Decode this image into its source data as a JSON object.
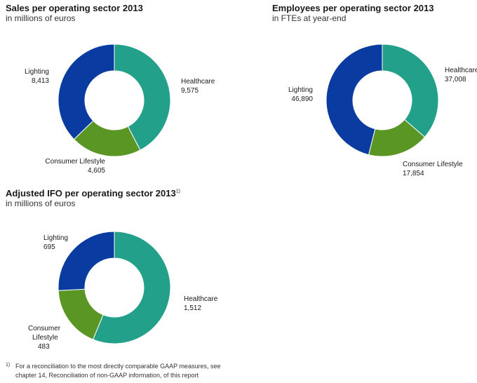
{
  "colors": {
    "Healthcare": "#22a08a",
    "Consumer Lifestyle": "#5a9623",
    "Lighting": "#0a3ba0"
  },
  "chart_data": [
    {
      "type": "pie",
      "title": "Sales per operating sector 2013",
      "subtitle": "in millions of euros",
      "series": [
        {
          "name": "Healthcare",
          "label": "Healthcare",
          "value": 9575,
          "value_label": "9,575"
        },
        {
          "name": "Consumer Lifestyle",
          "label": "Consumer Lifestyle",
          "value": 4605,
          "value_label": "4,605"
        },
        {
          "name": "Lighting",
          "label": "Lighting",
          "value": 8413,
          "value_label": "8,413"
        }
      ]
    },
    {
      "type": "pie",
      "title": "Employees per operating sector 2013",
      "subtitle": "in FTEs at year-end",
      "series": [
        {
          "name": "Healthcare",
          "label": "Healthcare",
          "value": 37008,
          "value_label": "37,008"
        },
        {
          "name": "Consumer Lifestyle",
          "label": "Consumer Lifestyle",
          "value": 17854,
          "value_label": "17,854"
        },
        {
          "name": "Lighting",
          "label": "Lighting",
          "value": 46890,
          "value_label": "46,890"
        }
      ]
    },
    {
      "type": "pie",
      "title": "Adjusted IFO per operating sector 2013",
      "title_footnote_mark": "1)",
      "subtitle": "in millions of euros",
      "series": [
        {
          "name": "Healthcare",
          "label": "Healthcare",
          "value": 1512,
          "value_label": "1,512"
        },
        {
          "name": "Consumer Lifestyle",
          "label": "Consumer Lifestyle",
          "label_lines": [
            "Consumer",
            "Lifestyle"
          ],
          "value": 483,
          "value_label": "483"
        },
        {
          "name": "Lighting",
          "label": "Lighting",
          "value": 695,
          "value_label": "695"
        }
      ]
    }
  ],
  "footnote": {
    "mark": "1)",
    "line1": "For a reconciliation to the most directly comparable GAAP measures, see",
    "line2": "chapter 14, Reconciliation of non-GAAP information, of this report"
  }
}
